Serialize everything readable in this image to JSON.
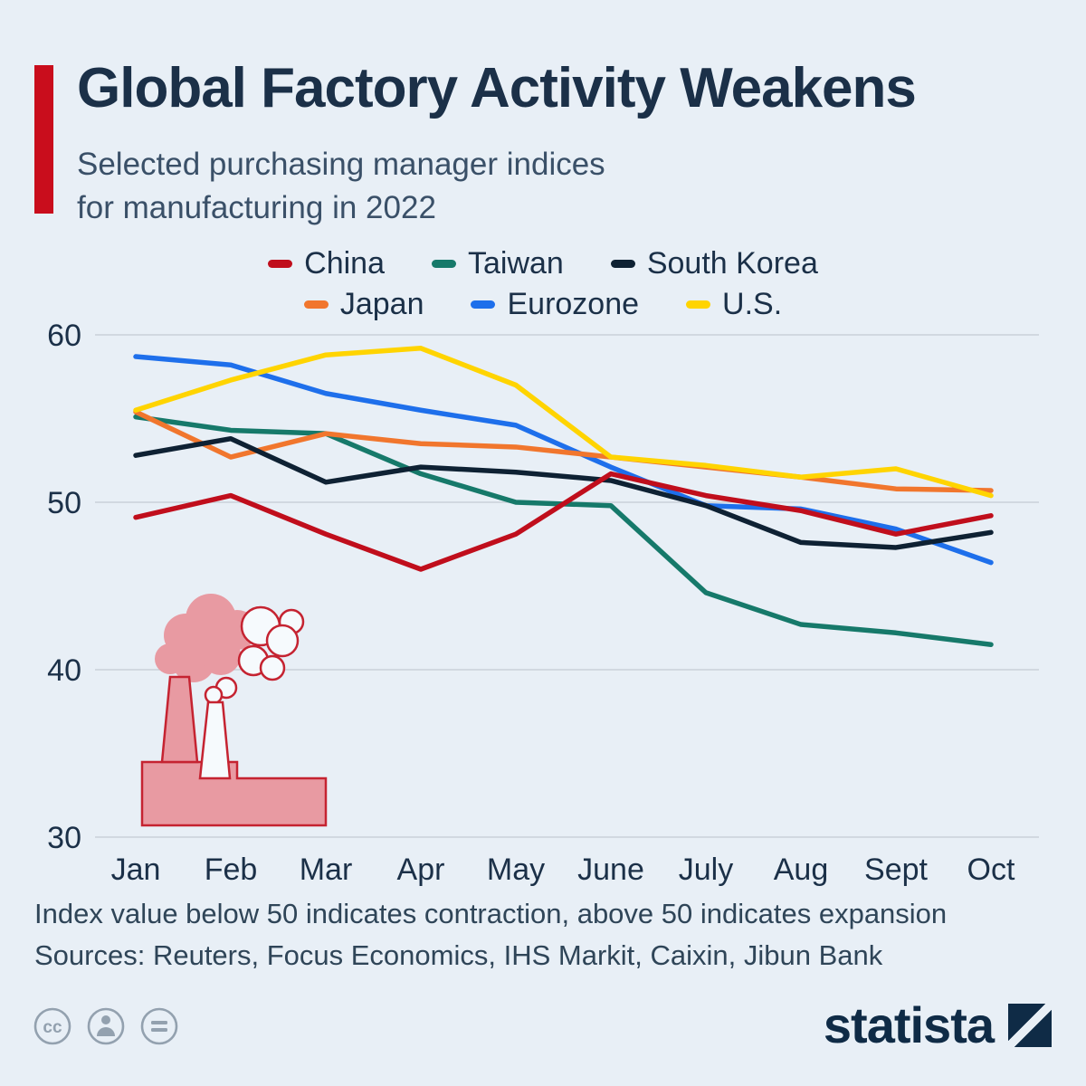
{
  "page": {
    "background": "#e8eff6"
  },
  "header": {
    "accent_color": "#c90d1c",
    "title": "Global Factory Activity Weakens",
    "subtitle_lines": [
      "Selected purchasing manager indices",
      "for manufacturing in 2022"
    ]
  },
  "chart_data": {
    "type": "line",
    "title": "Global Factory Activity Weakens",
    "subtitle": "Selected purchasing manager indices for manufacturing in 2022",
    "x_categories": [
      "Jan",
      "Feb",
      "Mar",
      "Apr",
      "May",
      "June",
      "July",
      "Aug",
      "Sept",
      "Oct"
    ],
    "series": [
      {
        "name": "China",
        "color": "#c00e1c",
        "values": [
          49.1,
          50.4,
          48.1,
          46.0,
          48.1,
          51.7,
          50.4,
          49.5,
          48.1,
          49.2
        ]
      },
      {
        "name": "Taiwan",
        "color": "#16796a",
        "values": [
          55.1,
          54.3,
          54.1,
          51.7,
          50.0,
          49.8,
          44.6,
          42.7,
          42.2,
          41.5
        ]
      },
      {
        "name": "South Korea",
        "color": "#0e2133",
        "values": [
          52.8,
          53.8,
          51.2,
          52.1,
          51.8,
          51.3,
          49.8,
          47.6,
          47.3,
          48.2
        ]
      },
      {
        "name": "Japan",
        "color": "#f1762d",
        "values": [
          55.4,
          52.7,
          54.1,
          53.5,
          53.3,
          52.7,
          52.1,
          51.5,
          50.8,
          50.7
        ]
      },
      {
        "name": "Eurozone",
        "color": "#1e6feb",
        "values": [
          58.7,
          58.2,
          56.5,
          55.5,
          54.6,
          52.1,
          49.8,
          49.6,
          48.4,
          46.4
        ]
      },
      {
        "name": "U.S.",
        "color": "#ffd400",
        "values": [
          55.5,
          57.3,
          58.8,
          59.2,
          57.0,
          52.7,
          52.2,
          51.5,
          52.0,
          50.4
        ]
      }
    ],
    "ylim": [
      30,
      60
    ],
    "yticks": [
      30,
      40,
      50,
      60
    ],
    "grid": true,
    "legend_position": "top",
    "legend_rows": [
      [
        "China",
        "Taiwan",
        "South Korea"
      ],
      [
        "Japan",
        "Eurozone",
        "U.S."
      ]
    ]
  },
  "footer": {
    "note": "Index value below 50 indicates contraction, above 50 indicates expansion",
    "sources": "Sources: Reuters, Focus Economics, IHS Markit, Caixin, Jibun Bank"
  },
  "branding": {
    "logo_text": "statista",
    "cc_icon_text": "cc",
    "logo_color": "#0f2b46"
  }
}
